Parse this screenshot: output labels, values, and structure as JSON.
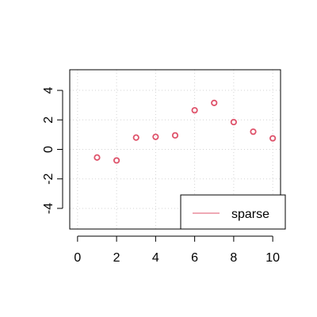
{
  "chart_data": {
    "type": "scatter",
    "title": "",
    "xlabel": "",
    "ylabel": "",
    "xlim": [
      -0.4,
      10.4
    ],
    "ylim": [
      -5.4,
      5.4
    ],
    "x_ticks": [
      0,
      2,
      4,
      6,
      8,
      10
    ],
    "y_ticks": [
      -4,
      -2,
      0,
      2,
      4
    ],
    "grid": true,
    "legend_position": "bottom-right",
    "series": [
      {
        "name": "sparse",
        "color": "#df536b",
        "marker": "open-circle",
        "x": [
          1,
          2,
          3,
          4,
          5,
          6,
          7,
          8,
          9,
          10
        ],
        "y": [
          -0.55,
          -0.75,
          0.8,
          0.85,
          0.95,
          2.65,
          3.15,
          1.85,
          1.2,
          0.75
        ]
      }
    ]
  }
}
